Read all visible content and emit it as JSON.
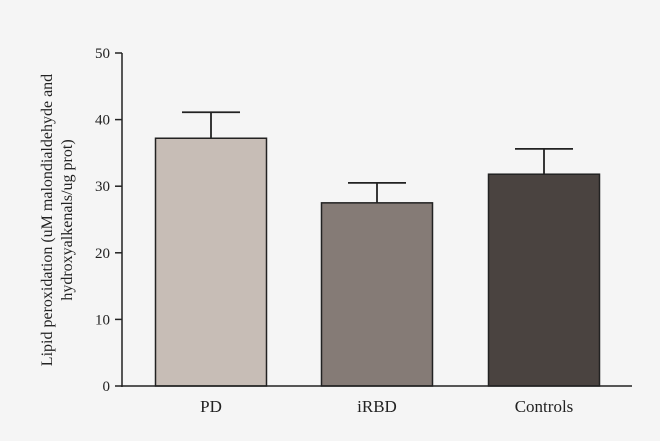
{
  "chart_data": {
    "type": "bar",
    "categories": [
      "PD",
      "iRBD",
      "Controls"
    ],
    "values": [
      37.2,
      27.5,
      31.8
    ],
    "error_upper": [
      41.1,
      30.5,
      35.6
    ],
    "bar_colors": [
      "#c7bdb6",
      "#857b76",
      "#4a4340"
    ],
    "title": "",
    "xlabel": "",
    "ylabel": "Lipid peroxidation (uM malondialdehyde and hydroxyalkenals/ug prot)",
    "ylabel_lines": [
      "Lipid peroxidation (uM malondialdehyde and",
      "hydroxyalkenals/ug prot)"
    ],
    "ylim": [
      0,
      50
    ],
    "yticks": [
      0,
      10,
      20,
      30,
      40,
      50
    ],
    "ytick_labels": [
      "0",
      "10",
      "20",
      "30",
      "40",
      "50"
    ],
    "grid": false,
    "legend": "none"
  }
}
